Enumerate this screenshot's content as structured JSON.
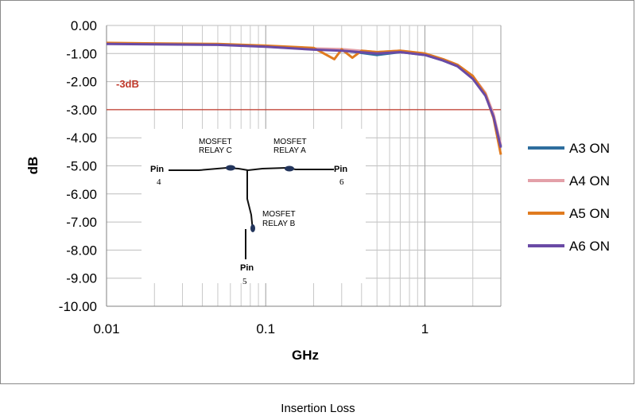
{
  "chart_data": {
    "type": "line",
    "xlabel": "GHz",
    "ylabel": "dB",
    "x_scale": "log",
    "xlim": [
      0.01,
      3
    ],
    "ylim": [
      -10,
      0
    ],
    "x_ticks": [
      {
        "value": 0.01,
        "label": "0.01"
      },
      {
        "value": 0.1,
        "label": "0.1"
      },
      {
        "value": 1,
        "label": "1"
      }
    ],
    "y_ticks": [
      {
        "value": 0,
        "label": "0.00"
      },
      {
        "value": -1,
        "label": "-1.00"
      },
      {
        "value": -2,
        "label": "-2.00"
      },
      {
        "value": -3,
        "label": "-3.00"
      },
      {
        "value": -4,
        "label": "-4.00"
      },
      {
        "value": -5,
        "label": "-5.00"
      },
      {
        "value": -6,
        "label": "-6.00"
      },
      {
        "value": -7,
        "label": "-7.00"
      },
      {
        "value": -8,
        "label": "-8.00"
      },
      {
        "value": -9,
        "label": "-9.00"
      },
      {
        "value": -10,
        "label": "-10.00"
      }
    ],
    "grid": true,
    "legend_position": "right",
    "reference_line": {
      "y": -3,
      "label": "-3dB",
      "color": "#c0392b"
    },
    "series": [
      {
        "name": "A3 ON",
        "color": "#2e6e9e",
        "x": [
          0.01,
          0.02,
          0.05,
          0.1,
          0.2,
          0.3,
          0.5,
          0.7,
          1.0,
          1.3,
          1.6,
          2.0,
          2.4,
          2.7,
          3.0
        ],
        "y": [
          -0.65,
          -0.66,
          -0.68,
          -0.75,
          -0.85,
          -0.88,
          -1.05,
          -0.95,
          -1.05,
          -1.25,
          -1.45,
          -1.85,
          -2.45,
          -3.2,
          -4.3
        ]
      },
      {
        "name": "A4 ON",
        "color": "#e3a0a8",
        "x": [
          0.01,
          0.02,
          0.05,
          0.1,
          0.2,
          0.3,
          0.5,
          0.7,
          1.0,
          1.3,
          1.6,
          2.0,
          2.4,
          2.7,
          3.0
        ],
        "y": [
          -0.63,
          -0.65,
          -0.67,
          -0.74,
          -0.82,
          -0.84,
          -0.95,
          -0.9,
          -1.0,
          -1.2,
          -1.4,
          -1.8,
          -2.4,
          -3.15,
          -4.25
        ]
      },
      {
        "name": "A5 ON",
        "color": "#e07b1f",
        "x": [
          0.01,
          0.02,
          0.05,
          0.1,
          0.2,
          0.27,
          0.3,
          0.35,
          0.4,
          0.5,
          0.7,
          1.0,
          1.3,
          1.6,
          2.0,
          2.4,
          2.7,
          3.0
        ],
        "y": [
          -0.62,
          -0.64,
          -0.66,
          -0.72,
          -0.8,
          -1.2,
          -0.85,
          -1.15,
          -0.9,
          -0.95,
          -0.9,
          -1.0,
          -1.2,
          -1.4,
          -1.8,
          -2.45,
          -3.3,
          -4.6
        ]
      },
      {
        "name": "A6 ON",
        "color": "#6a4aa5",
        "x": [
          0.01,
          0.02,
          0.05,
          0.1,
          0.2,
          0.3,
          0.5,
          0.7,
          1.0,
          1.3,
          1.6,
          2.0,
          2.4,
          2.7,
          3.0
        ],
        "y": [
          -0.66,
          -0.67,
          -0.69,
          -0.76,
          -0.86,
          -0.9,
          -1.0,
          -0.95,
          -1.05,
          -1.25,
          -1.45,
          -1.9,
          -2.5,
          -3.25,
          -4.35
        ]
      }
    ]
  },
  "inset": {
    "relay_c": [
      "MOSFET",
      "RELAY C"
    ],
    "relay_a": [
      "MOSFET",
      "RELAY A"
    ],
    "relay_b": [
      "MOSFET",
      "RELAY B"
    ],
    "pin_word": "Pin",
    "pin_4": "4",
    "pin_6": "6",
    "pin_5": "5"
  },
  "caption": "Insertion Loss"
}
